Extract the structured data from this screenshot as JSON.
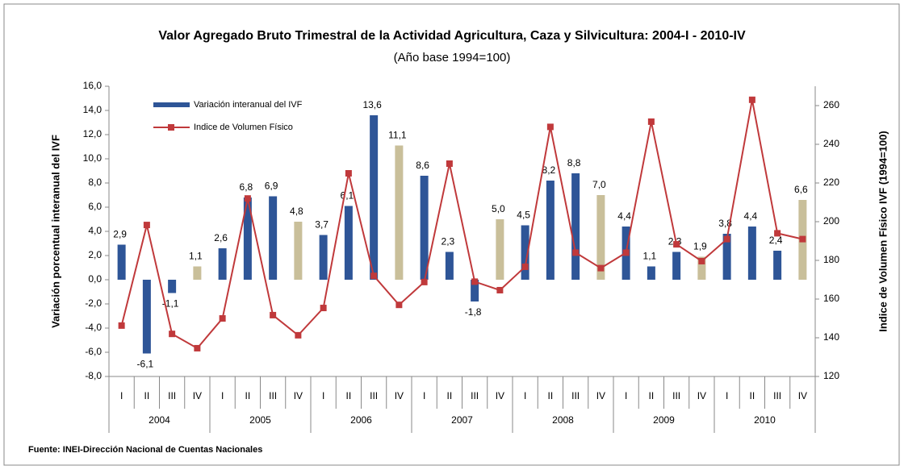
{
  "chart_data": {
    "type": "bar_line",
    "title": "Valor Agregado Bruto Trimestral de la Actividad Agricultura, Caza y Silvicultura: 2004-I - 2010-IV",
    "subtitle": "(Año base 1994=100)",
    "ylabel": "Variación porcentual interanual del IVF",
    "y2label": "Indice de Volumen Físico IVF (1994=100)",
    "source": "Fuente: INEI-Dirección Nacional de Cuentas  Nacionales",
    "categories": [
      "I",
      "II",
      "III",
      "IV",
      "I",
      "II",
      "III",
      "IV",
      "I",
      "II",
      "III",
      "IV",
      "I",
      "II",
      "III",
      "IV",
      "I",
      "II",
      "III",
      "IV",
      "I",
      "II",
      "III",
      "IV",
      "I",
      "II",
      "III",
      "IV"
    ],
    "years": [
      "2004",
      "2005",
      "2006",
      "2007",
      "2008",
      "2009",
      "2010"
    ],
    "ylim": [
      -8,
      16
    ],
    "yticks": [
      {
        "value": -8,
        "label": "-8,0"
      },
      {
        "value": -6,
        "label": "-6,0"
      },
      {
        "value": -4,
        "label": "-4,0"
      },
      {
        "value": -2,
        "label": "-2,0"
      },
      {
        "value": 0,
        "label": "0,0"
      },
      {
        "value": 2,
        "label": "2,0"
      },
      {
        "value": 4,
        "label": "4,0"
      },
      {
        "value": 6,
        "label": "6,0"
      },
      {
        "value": 8,
        "label": "8,0"
      },
      {
        "value": 10,
        "label": "10,0"
      },
      {
        "value": 12,
        "label": "12,0"
      },
      {
        "value": 14,
        "label": "14,0"
      },
      {
        "value": 16,
        "label": "16,0"
      }
    ],
    "y2lim": [
      120,
      270
    ],
    "y2ticks": [
      120,
      140,
      160,
      180,
      200,
      220,
      240,
      260
    ],
    "series": [
      {
        "name": "Variación interanual del IVF",
        "type": "bar",
        "color": "#2e5597",
        "colors": [
          "#2e5597",
          "#2e5597",
          "#2e5597",
          "#c9bf9a",
          "#2e5597",
          "#2e5597",
          "#2e5597",
          "#c9bf9a",
          "#2e5597",
          "#2e5597",
          "#2e5597",
          "#c9bf9a",
          "#2e5597",
          "#2e5597",
          "#2e5597",
          "#c9bf9a",
          "#2e5597",
          "#2e5597",
          "#2e5597",
          "#c9bf9a",
          "#2e5597",
          "#2e5597",
          "#2e5597",
          "#c9bf9a",
          "#2e5597",
          "#2e5597",
          "#2e5597",
          "#c9bf9a"
        ],
        "values": [
          2.9,
          -6.1,
          -1.1,
          1.1,
          2.6,
          6.8,
          6.9,
          4.8,
          3.7,
          6.1,
          13.6,
          11.1,
          8.6,
          2.3,
          -1.8,
          5.0,
          4.5,
          8.2,
          8.8,
          7.0,
          4.4,
          1.1,
          2.3,
          1.9,
          3.8,
          4.4,
          2.4,
          6.6
        ],
        "value_labels": [
          "2,9",
          "-6,1",
          "-1,1",
          "1,1",
          "2,6",
          "6,8",
          "6,9",
          "4,8",
          "3,7",
          "6,1",
          "13,6",
          "11,1",
          "8,6",
          "2,3",
          "-1,8",
          "5,0",
          "4,5",
          "8,2",
          "8,8",
          "7,0",
          "4,4",
          "1,1",
          "2,3",
          "1,9",
          "3,8",
          "4,4",
          "2,4",
          "6,6"
        ]
      },
      {
        "name": "Indice de Volumen Físico",
        "type": "line",
        "axis": "y2",
        "color": "#c0393b",
        "values": [
          146.3,
          198.3,
          142,
          134.6,
          150,
          212,
          151.7,
          141.3,
          155.4,
          225,
          172,
          157,
          168.8,
          230,
          169,
          164.6,
          176.7,
          249,
          184,
          176,
          184,
          251.7,
          188.3,
          179.6,
          191,
          263,
          194,
          191
        ]
      }
    ]
  }
}
